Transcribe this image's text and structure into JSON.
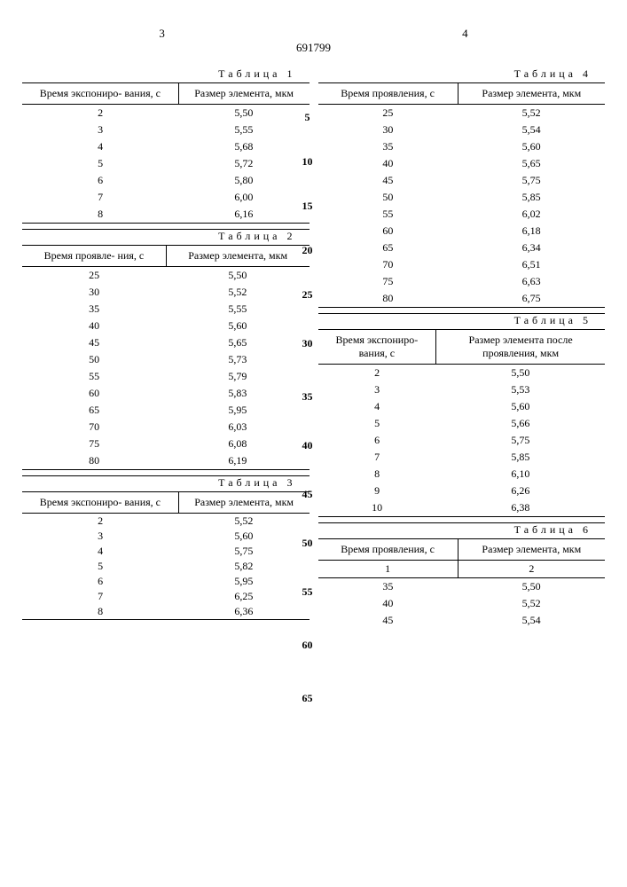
{
  "doc_number": "691799",
  "left_page_num": "3",
  "right_page_num": "4",
  "line_markers_right": [
    "5",
    "10",
    "15",
    "20",
    "25",
    "30",
    "35",
    "40",
    "45",
    "50",
    "55",
    "60",
    "65"
  ],
  "table1": {
    "caption": "Таблица 1",
    "headers": [
      "Время экспониро-\nвания, с",
      "Размер элемента,\nмкм"
    ],
    "rows": [
      [
        "2",
        "5,50"
      ],
      [
        "3",
        "5,55"
      ],
      [
        "4",
        "5,68"
      ],
      [
        "5",
        "5,72"
      ],
      [
        "6",
        "5,80"
      ],
      [
        "7",
        "6,00"
      ],
      [
        "8",
        "6,16"
      ]
    ]
  },
  "table2": {
    "caption": "Таблица 2",
    "headers": [
      "Время проявле-\nния, с",
      "Размер\nэлемента,\nмкм"
    ],
    "rows": [
      [
        "25",
        "5,50"
      ],
      [
        "30",
        "5,52"
      ],
      [
        "35",
        "5,55"
      ],
      [
        "40",
        "5,60"
      ],
      [
        "45",
        "5,65"
      ],
      [
        "50",
        "5,73"
      ],
      [
        "55",
        "5,79"
      ],
      [
        "60",
        "5,83"
      ],
      [
        "65",
        "5,95"
      ],
      [
        "70",
        "6,03"
      ],
      [
        "75",
        "6,08"
      ],
      [
        "80",
        "6,19"
      ]
    ]
  },
  "table3": {
    "caption": "Таблица 3",
    "headers": [
      "Время экспониро-\nвания, с",
      "Размер элемента,\nмкм"
    ],
    "rows": [
      [
        "2",
        "5,52"
      ],
      [
        "3",
        "5,60"
      ],
      [
        "4",
        "5,75"
      ],
      [
        "5",
        "5,82"
      ],
      [
        "6",
        "5,95"
      ],
      [
        "7",
        "6,25"
      ],
      [
        "8",
        "6,36"
      ]
    ]
  },
  "table4": {
    "caption": "Таблица 4",
    "headers": [
      "Время проявления,\nс",
      "Размер\nэлемента, мкм"
    ],
    "rows": [
      [
        "25",
        "5,52"
      ],
      [
        "30",
        "5,54"
      ],
      [
        "35",
        "5,60"
      ],
      [
        "40",
        "5,65"
      ],
      [
        "45",
        "5,75"
      ],
      [
        "50",
        "5,85"
      ],
      [
        "55",
        "6,02"
      ],
      [
        "60",
        "6,18"
      ],
      [
        "65",
        "6,34"
      ],
      [
        "70",
        "6,51"
      ],
      [
        "75",
        "6,63"
      ],
      [
        "80",
        "6,75"
      ]
    ]
  },
  "table5": {
    "caption": "Таблица 5",
    "headers": [
      "Время экспониро-\nвания, с",
      "Размер элемента\nпосле проявления,\nмкм"
    ],
    "rows": [
      [
        "2",
        "5,50"
      ],
      [
        "3",
        "5,53"
      ],
      [
        "4",
        "5,60"
      ],
      [
        "5",
        "5,66"
      ],
      [
        "6",
        "5,75"
      ],
      [
        "7",
        "5,85"
      ],
      [
        "8",
        "6,10"
      ],
      [
        "9",
        "6,26"
      ],
      [
        "10",
        "6,38"
      ]
    ]
  },
  "table6": {
    "caption": "Таблица 6",
    "headers": [
      "Время проявления,\nс",
      "Размер\nэлемента, мкм"
    ],
    "subheaders": [
      "1",
      "2"
    ],
    "rows": [
      [
        "35",
        "5,50"
      ],
      [
        "40",
        "5,52"
      ],
      [
        "45",
        "5,54"
      ]
    ]
  }
}
